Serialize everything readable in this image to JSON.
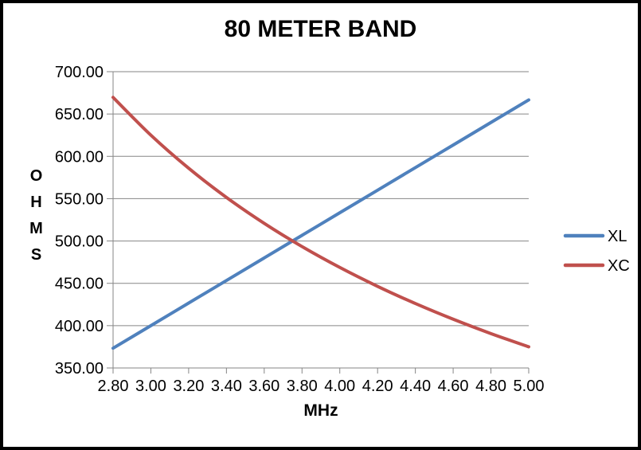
{
  "chart_data": {
    "type": "line",
    "title": "80 METER BAND",
    "xlabel": "MHz",
    "ylabel": "OHMS",
    "xlim": [
      2.8,
      5.0
    ],
    "ylim": [
      350,
      700
    ],
    "x": [
      2.8,
      3.0,
      3.2,
      3.4,
      3.6,
      3.8,
      4.0,
      4.2,
      4.4,
      4.6,
      4.8,
      5.0
    ],
    "xtick_labels": [
      "2.80",
      "3.00",
      "3.20",
      "3.40",
      "3.60",
      "3.80",
      "4.00",
      "4.20",
      "4.40",
      "4.60",
      "4.80",
      "5.00"
    ],
    "ytick_values": [
      350,
      400,
      450,
      500,
      550,
      600,
      650,
      700
    ],
    "ytick_labels": [
      "350.00",
      "400.00",
      "450.00",
      "500.00",
      "550.00",
      "600.00",
      "650.00",
      "700.00"
    ],
    "grid": "horizontal",
    "line_style": "smooth",
    "legend_position": "right",
    "series": [
      {
        "name": "XL",
        "color": "#4F81BD",
        "values": [
          373.33,
          400.0,
          426.67,
          453.33,
          480.0,
          506.67,
          533.33,
          560.0,
          586.67,
          613.33,
          640.0,
          666.67
        ]
      },
      {
        "name": "XC",
        "color": "#C0504D",
        "values": [
          669.64,
          625.0,
          585.94,
          551.47,
          520.83,
          493.42,
          468.75,
          446.43,
          426.14,
          407.61,
          390.63,
          375.0
        ]
      }
    ],
    "colors": {
      "gridline": "#868686",
      "axis": "#868686",
      "text": "#000000",
      "background": "#FFFFFF",
      "border": "#000000"
    }
  }
}
